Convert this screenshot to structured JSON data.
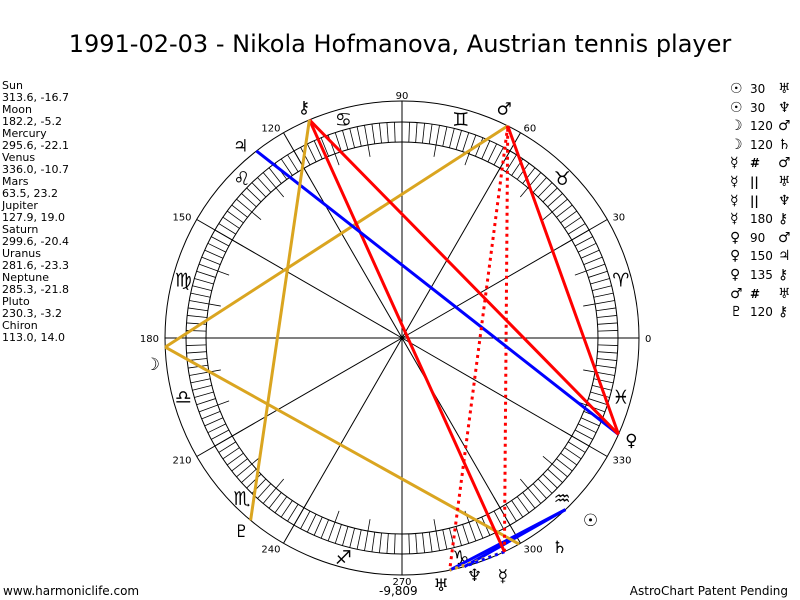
{
  "title": "1991-02-03 - Nikola Hofmanova, Austrian tennis player",
  "planets": [
    {
      "name": "Sun",
      "pos": "313.6, -16.7",
      "lon": 313.6,
      "glyph": "☉"
    },
    {
      "name": "Moon",
      "pos": "182.2, -5.2",
      "lon": 182.2,
      "glyph": "☽"
    },
    {
      "name": "Mercury",
      "pos": "295.6, -22.1",
      "lon": 295.6,
      "glyph": "☿"
    },
    {
      "name": "Venus",
      "pos": "336.0, -10.7",
      "lon": 336.0,
      "glyph": "♀"
    },
    {
      "name": "Mars",
      "pos": "63.5, 23.2",
      "lon": 63.5,
      "glyph": "♂"
    },
    {
      "name": "Jupiter",
      "pos": "127.9, 19.0",
      "lon": 127.9,
      "glyph": "♃"
    },
    {
      "name": "Saturn",
      "pos": "299.6, -20.4",
      "lon": 299.6,
      "glyph": "♄"
    },
    {
      "name": "Uranus",
      "pos": "281.6, -23.3",
      "lon": 281.6,
      "glyph": "♅"
    },
    {
      "name": "Neptune",
      "pos": "285.3, -21.8",
      "lon": 285.3,
      "glyph": "♆"
    },
    {
      "name": "Pluto",
      "pos": "230.3, -3.2",
      "lon": 230.3,
      "glyph": "♇"
    },
    {
      "name": "Chiron",
      "pos": "113.0, 14.0",
      "lon": 113.0,
      "glyph": "⚷"
    }
  ],
  "aspects": [
    {
      "a": "☉",
      "label": "30",
      "b": "♅",
      "p1": 0,
      "p2": 7,
      "color": "#0000FF",
      "style": "solid"
    },
    {
      "a": "☉",
      "label": "30",
      "b": "♆",
      "p1": 0,
      "p2": 8,
      "color": "#0000FF",
      "style": "solid"
    },
    {
      "a": "☽",
      "label": "120",
      "b": "♂",
      "p1": 1,
      "p2": 4,
      "color": "#DAA520",
      "style": "solid"
    },
    {
      "a": "☽",
      "label": "120",
      "b": "♄",
      "p1": 1,
      "p2": 6,
      "color": "#DAA520",
      "style": "solid"
    },
    {
      "a": "☿",
      "label": "#",
      "b": "♂",
      "p1": 2,
      "p2": 4,
      "color": "#FF0000",
      "style": "dotted"
    },
    {
      "a": "☿",
      "label": "||",
      "b": "♅",
      "p1": 2,
      "p2": 7,
      "color": "#DAA520",
      "style": "dotted"
    },
    {
      "a": "☿",
      "label": "||",
      "b": "♆",
      "p1": 2,
      "p2": 8,
      "color": "#0000FF",
      "style": "dotted"
    },
    {
      "a": "☿",
      "label": "180",
      "b": "⚷",
      "p1": 2,
      "p2": 10,
      "color": "#FF0000",
      "style": "solid"
    },
    {
      "a": "♀",
      "label": "90",
      "b": "♂",
      "p1": 3,
      "p2": 4,
      "color": "#FF0000",
      "style": "solid"
    },
    {
      "a": "♀",
      "label": "150",
      "b": "♃",
      "p1": 3,
      "p2": 5,
      "color": "#0000FF",
      "style": "solid"
    },
    {
      "a": "♀",
      "label": "135",
      "b": "⚷",
      "p1": 3,
      "p2": 10,
      "color": "#FF0000",
      "style": "solid"
    },
    {
      "a": "♂",
      "label": "#",
      "b": "♅",
      "p1": 4,
      "p2": 7,
      "color": "#FF0000",
      "style": "dotted"
    },
    {
      "a": "♇",
      "label": "120",
      "b": "⚷",
      "p1": 9,
      "p2": 10,
      "color": "#DAA520",
      "style": "solid"
    }
  ],
  "signs": [
    "♈",
    "♉",
    "♊",
    "♋",
    "♌",
    "♍",
    "♎",
    "♏",
    "♐",
    "♑",
    "♒",
    "♓"
  ],
  "degree_labels": [
    "0",
    "30",
    "60",
    "90",
    "120",
    "150",
    "180",
    "210",
    "240",
    "270",
    "300",
    "330"
  ],
  "footer": {
    "left": "www.harmoniclife.com",
    "center": "-9,809",
    "right": "AstroChart Patent Pending"
  }
}
